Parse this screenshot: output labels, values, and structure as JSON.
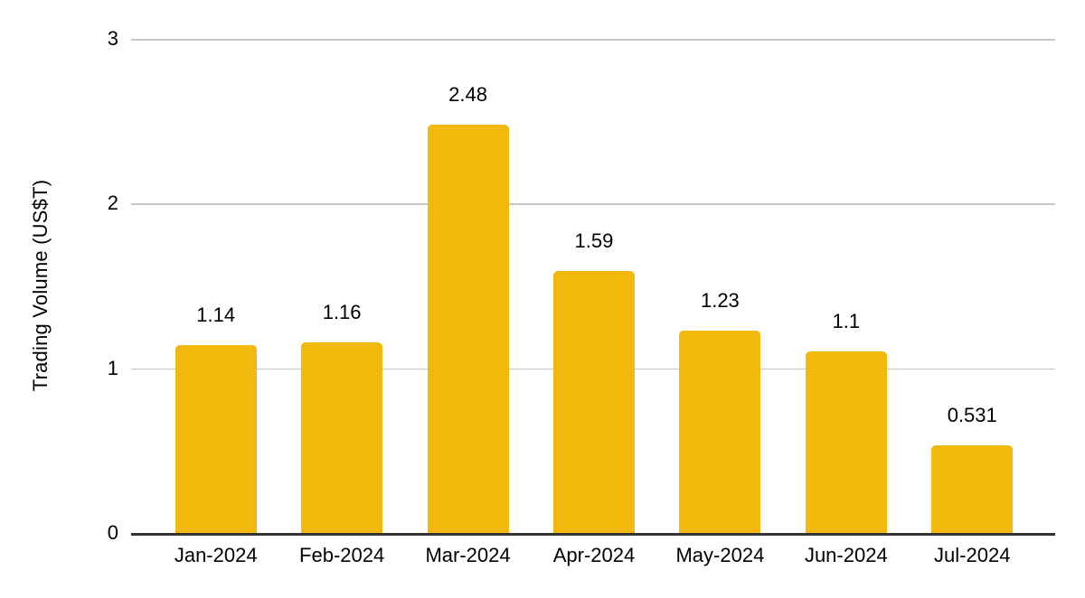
{
  "chart_data": {
    "type": "bar",
    "title": "",
    "categories": [
      "Jan-2024",
      "Feb-2024",
      "Mar-2024",
      "Apr-2024",
      "May-2024",
      "Jun-2024",
      "Jul-2024"
    ],
    "values": [
      1.14,
      1.16,
      2.48,
      1.59,
      1.23,
      1.1,
      0.531
    ],
    "value_labels": [
      "1.14",
      "1.16",
      "2.48",
      "1.59",
      "1.23",
      "1.1",
      "0.531"
    ],
    "xlabel": "",
    "ylabel": "Trading Volume (US$T)",
    "ylim": [
      0,
      3
    ],
    "yticks": [
      0,
      1,
      2,
      3
    ],
    "grid": true,
    "legend": "none",
    "bar_color": "#F0B90B",
    "gridline_color": "#c7c7c7",
    "axis_line_color": "#333333",
    "text_color": "#000000",
    "background": "#ffffff"
  }
}
